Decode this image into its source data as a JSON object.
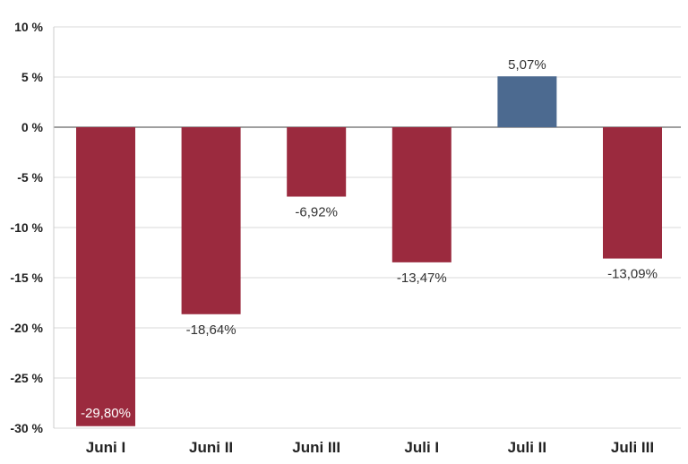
{
  "chart_data": {
    "type": "bar",
    "categories": [
      "Juni I",
      "Juni II",
      "Juni III",
      "Juli I",
      "Juli II",
      "Juli III"
    ],
    "values": [
      -29.8,
      -18.64,
      -6.92,
      -13.47,
      5.07,
      -13.09
    ],
    "data_labels": [
      "-29,80%",
      "-18,64%",
      "-6,92%",
      "-13,47%",
      "5,07%",
      "-13,09%"
    ],
    "ylim": [
      -30,
      10
    ],
    "yticks": [
      10,
      5,
      0,
      -5,
      -10,
      -15,
      -20,
      -25,
      -30
    ],
    "ytick_labels": [
      "10 %",
      "5 %",
      "0 %",
      "-5 %",
      "-10 %",
      "-15 %",
      "-20 %",
      "-25 %",
      "-30 %"
    ],
    "grid": true,
    "colors": {
      "negative": "#9b2a3e",
      "positive": "#4c6a90",
      "grid": "#d9d9d9",
      "zero_line": "#666666"
    }
  }
}
